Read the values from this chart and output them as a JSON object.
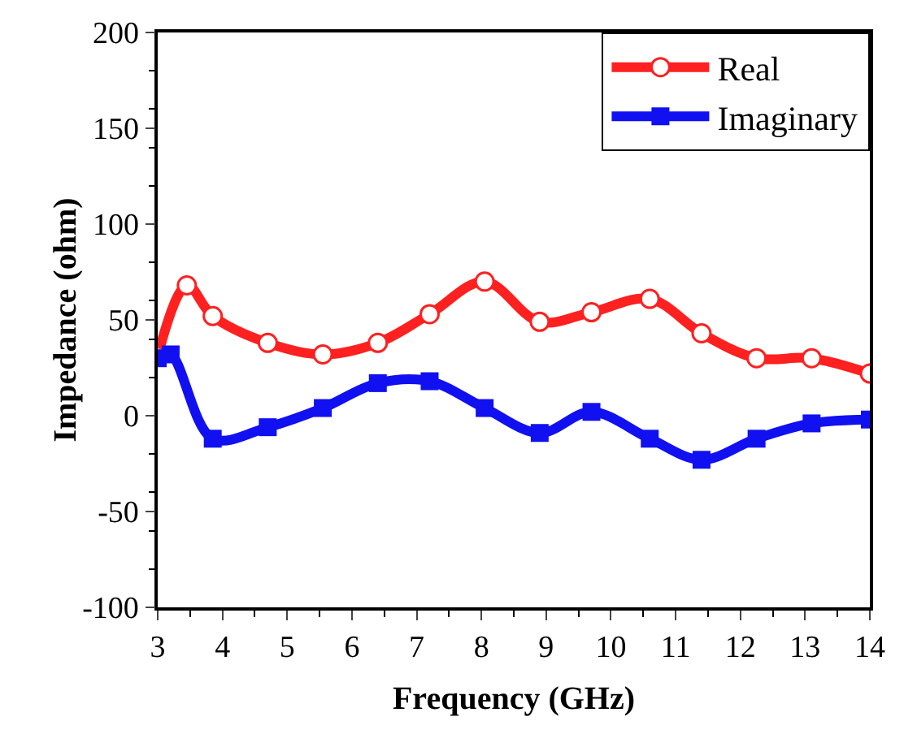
{
  "chart_data": {
    "type": "line",
    "xlabel": "Frequency (GHz)",
    "ylabel": "Impedance (ohm)",
    "xlim": [
      3,
      14
    ],
    "xticks": [
      3,
      4,
      5,
      6,
      7,
      8,
      9,
      10,
      11,
      12,
      13,
      14
    ],
    "ylim": [
      -100,
      200
    ],
    "yticks": [
      -100,
      -50,
      0,
      50,
      100,
      150,
      200
    ],
    "grid": false,
    "legend": "top right",
    "line_style": "solid",
    "series": [
      {
        "name": "Real",
        "color": "#ff2020",
        "marker": "circle",
        "x": [
          3,
          3.45,
          3.85,
          4.7,
          5.55,
          6.4,
          7.2,
          8.05,
          8.9,
          9.7,
          10.6,
          11.4,
          12.25,
          13.1,
          14
        ],
        "values": [
          31,
          68,
          52,
          38,
          32,
          38,
          53,
          70,
          49,
          54,
          61,
          43,
          30,
          30,
          22
        ]
      },
      {
        "name": "Imaginary",
        "color": "#1010f0",
        "marker": "square",
        "x": [
          3,
          3.2,
          3.85,
          4.7,
          5.55,
          6.4,
          7.2,
          8.05,
          8.9,
          9.7,
          10.6,
          11.4,
          12.25,
          13.1,
          14
        ],
        "values": [
          30,
          32,
          -12,
          -6,
          4,
          17,
          18,
          4,
          -9,
          2,
          -12,
          -23,
          -12,
          -4,
          -2
        ]
      }
    ]
  }
}
